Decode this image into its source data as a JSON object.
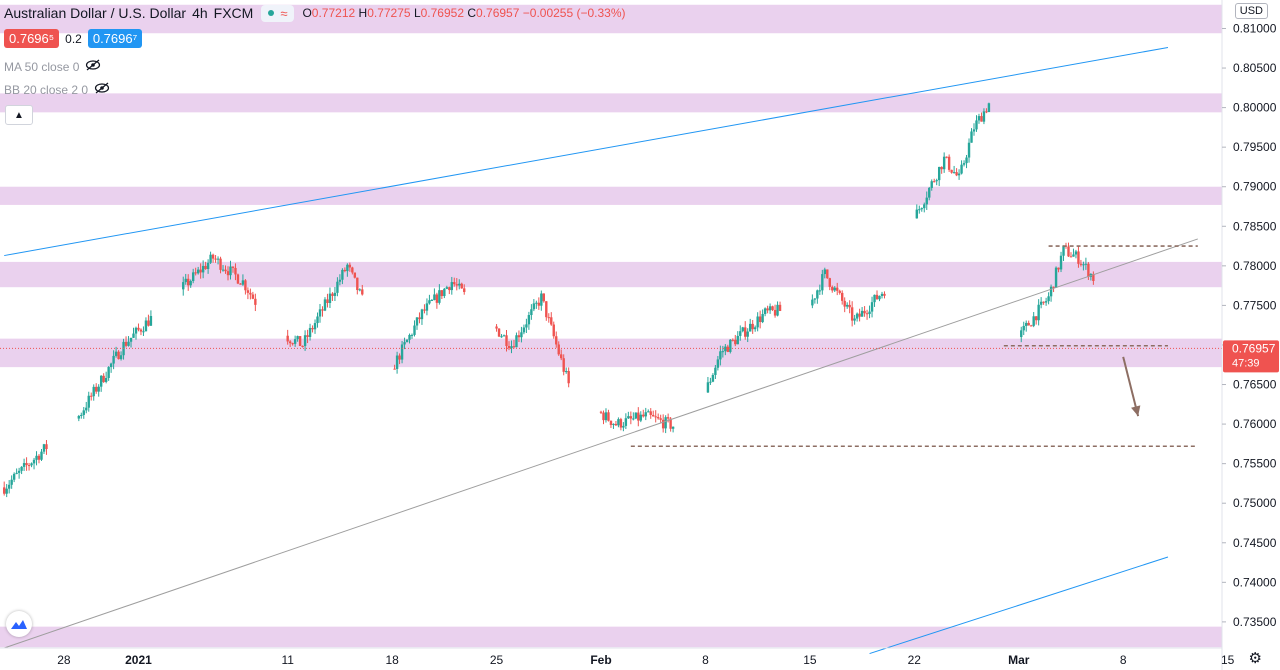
{
  "header": {
    "symbol": "Australian Dollar / U.S. Dollar",
    "timeframe": "4h",
    "source": "FXCM",
    "ohlc": {
      "o_label": "O",
      "o": "0.77212",
      "h_label": "H",
      "h": "0.77275",
      "l_label": "L",
      "l": "0.76952",
      "c_label": "C",
      "c": "0.76957",
      "change": "−0.00255 (−0.33%)"
    }
  },
  "quote": {
    "bid": "0.7696⁵",
    "spread": "0.2",
    "ask": "0.7696⁷"
  },
  "indicators": [
    {
      "label": "MA 50 close 0",
      "icon": "eye-crossed-icon"
    },
    {
      "label": "BB 20 close 2 0",
      "icon": "eye-crossed-icon"
    }
  ],
  "currency_label": "USD",
  "colors": {
    "up": "#26a69a",
    "down": "#ef5350",
    "zone": "#e1bee7",
    "channel": "#2196f3",
    "trend": "#9e9e9e",
    "dash": "#8d6e63"
  },
  "chart_data": {
    "type": "candlestick",
    "ylim": [
      0.7317,
      0.8136
    ],
    "yticks": [
      "0.81000",
      "0.80500",
      "0.80000",
      "0.79500",
      "0.79000",
      "0.78500",
      "0.78000",
      "0.77500",
      "0.77000",
      "0.76500",
      "0.76000",
      "0.75500",
      "0.75000",
      "0.74500",
      "0.74000",
      "0.73500"
    ],
    "x_labels": [
      "28",
      "2021",
      "11",
      "18",
      "25",
      "Feb",
      "8",
      "15",
      "22",
      "Mar",
      "8",
      "15"
    ],
    "last_price": "0.76957",
    "countdown": "47:39",
    "anchors": [
      [
        "Dec 23",
        0.752
      ],
      [
        "Dec 28",
        0.761
      ],
      [
        "Dec 31",
        0.77
      ],
      [
        "Jan 6",
        0.781
      ],
      [
        "Jan 8",
        0.778
      ],
      [
        "Jan 10",
        0.772
      ],
      [
        "Jan 12",
        0.77
      ],
      [
        "Jan 15",
        0.78
      ],
      [
        "Jan 18",
        0.767
      ],
      [
        "Jan 20",
        0.774
      ],
      [
        "Jan 22",
        0.778
      ],
      [
        "Jan 26",
        0.77
      ],
      [
        "Jan 28",
        0.776
      ],
      [
        "Jan 30",
        0.764
      ],
      [
        "Feb 2",
        0.76
      ],
      [
        "Feb 4",
        0.761
      ],
      [
        "Feb 7",
        0.759
      ],
      [
        "Feb 9",
        0.769
      ],
      [
        "Feb 12",
        0.774
      ],
      [
        "Feb 15",
        0.775
      ],
      [
        "Feb 16",
        0.779
      ],
      [
        "Feb 18",
        0.773
      ],
      [
        "Feb 21",
        0.779
      ],
      [
        "Feb 22",
        0.786
      ],
      [
        "Feb 24",
        0.7935
      ],
      [
        "Feb 25",
        0.791
      ],
      [
        "Feb 26",
        0.7975
      ],
      [
        "Feb 27",
        0.8005
      ],
      [
        "Feb 28",
        0.786
      ],
      [
        "Mar 1",
        0.771
      ],
      [
        "Mar 3",
        0.776
      ],
      [
        "Mar 4",
        0.782
      ],
      [
        "Mar 5",
        0.781
      ],
      [
        "Mar 6",
        0.7785
      ],
      [
        "Mar 7",
        0.7696
      ]
    ],
    "zones": [
      [
        0.8094,
        0.813
      ],
      [
        0.7994,
        0.8018
      ],
      [
        0.7877,
        0.79
      ],
      [
        0.7773,
        0.7805
      ],
      [
        0.7672,
        0.7708
      ],
      [
        0.7318,
        0.7344
      ]
    ],
    "lines": [
      {
        "kind": "channel",
        "from": [
          "Dec 23",
          0.7813
        ],
        "to": [
          "Mar 11",
          0.8076
        ]
      },
      {
        "kind": "channel",
        "from": [
          "Feb 19",
          0.731
        ],
        "to": [
          "Mar 11",
          0.7432
        ]
      },
      {
        "kind": "trend",
        "from": [
          "Dec 23",
          0.7317
        ],
        "to": [
          "Mar 13",
          0.7834
        ]
      },
      {
        "kind": "support",
        "from": [
          "Feb 3",
          0.7572
        ],
        "to": [
          "Mar 13",
          0.7572
        ]
      },
      {
        "kind": "support",
        "from": [
          "Feb 28",
          0.7699
        ],
        "to": [
          "Mar 11",
          0.7699
        ]
      },
      {
        "kind": "resistance",
        "from": [
          "Mar 3",
          0.7825
        ],
        "to": [
          "Mar 13",
          0.7825
        ]
      }
    ],
    "arrow": {
      "from": [
        "Mar 8",
        0.7685
      ],
      "to": [
        "Mar 9",
        0.761
      ]
    }
  }
}
